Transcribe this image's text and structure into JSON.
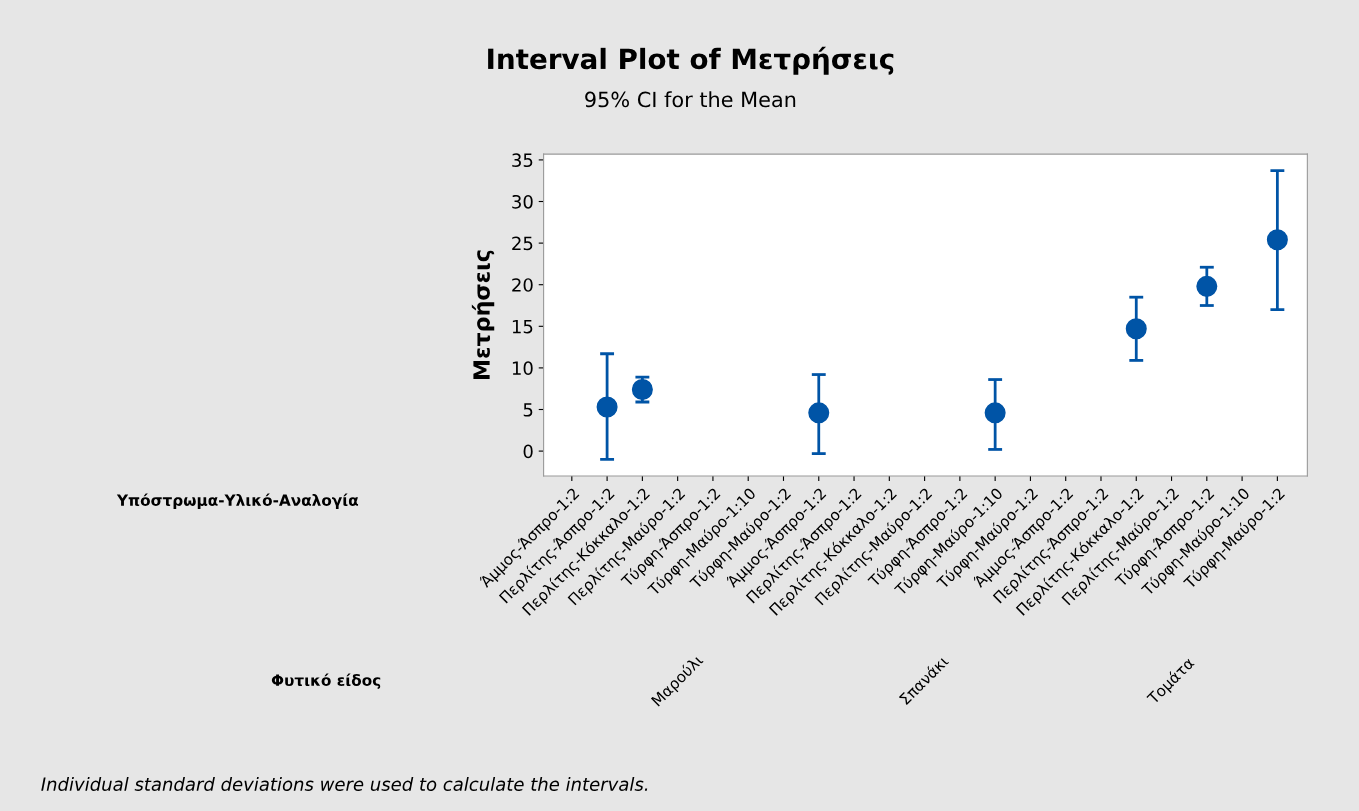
{
  "chart_data": {
    "type": "scatter",
    "title": "Interval Plot of Μετρήσεις",
    "subtitle": "95% CI for the Mean",
    "ylabel": "Μετρήσεις",
    "categories": [
      "Άμμος-Άσπρο-1:2",
      "Περλίτης-Άσπρο-1:2",
      "Περλίτης-Κόκκαλο-1:2",
      "Περλίτης-Μαύρο-1:2",
      "Τύρφη-Άσπρο-1:2",
      "Τύρφη-Μαύρο-1:10",
      "Τύρφη-Μαύρο-1:2",
      "Άμμος-Άσπρο-1:2",
      "Περλίτης-Άσπρο-1:2",
      "Περλίτης-Κόκκαλο-1:2",
      "Περλίτης-Μαύρο-1:2",
      "Τύρφη-Άσπρο-1:2",
      "Τύρφη-Μαύρο-1:10",
      "Τύρφη-Μαύρο-1:2",
      "Άμμος-Άσπρο-1:2",
      "Περλίτης-Άσπρο-1:2",
      "Περλίτης-Κόκκαλο-1:2",
      "Περλίτης-Μαύρο-1:2",
      "Τύρφη-Άσπρο-1:2",
      "Τύρφη-Μαύρο-1:10",
      "Τύρφη-Μαύρο-1:2"
    ],
    "series": [
      {
        "color": "#0054a6",
        "values": [
          null,
          5.3,
          7.4,
          null,
          null,
          null,
          null,
          4.6,
          null,
          null,
          null,
          null,
          4.6,
          null,
          null,
          null,
          14.7,
          null,
          19.8,
          null,
          25.4
        ],
        "errors": [
          null,
          [
            -1.0,
            11.7
          ],
          [
            5.9,
            8.9
          ],
          null,
          null,
          null,
          null,
          [
            -0.3,
            9.2
          ],
          null,
          null,
          null,
          null,
          [
            0.2,
            8.6
          ],
          null,
          null,
          null,
          [
            10.9,
            18.5
          ],
          null,
          [
            17.5,
            22.1
          ],
          null,
          [
            17.0,
            33.7
          ]
        ]
      }
    ],
    "ylim": [
      -3,
      35.7
    ],
    "yticks": [
      0,
      5,
      10,
      15,
      20,
      25,
      30,
      35
    ],
    "grid": false,
    "legend": false,
    "marker": "circle",
    "annotations": [
      "Υπόστρωμα-Υλικό-Αναλογία",
      "Φυτικό είδος",
      "Μαρούλι",
      "Σπανάκι",
      "Τομάτα",
      "Individual standard deviations were used to calculate the intervals."
    ]
  }
}
